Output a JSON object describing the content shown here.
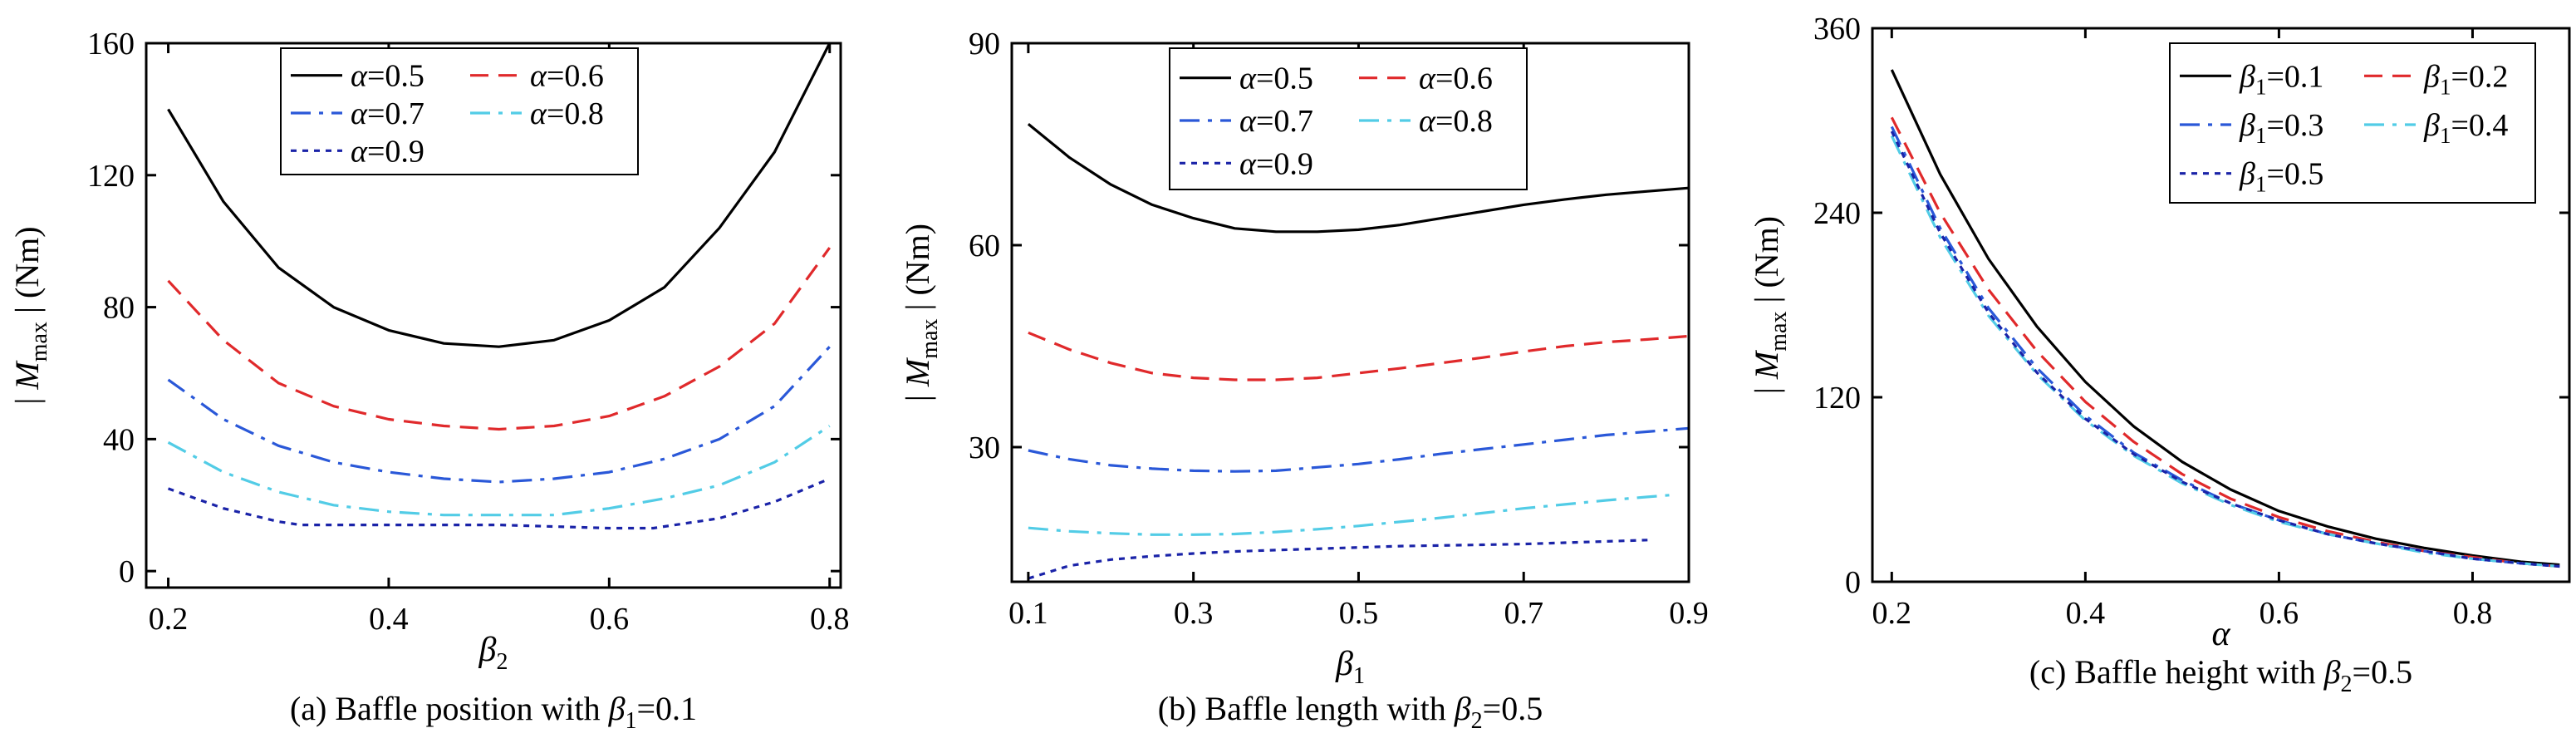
{
  "chart_data": [
    {
      "type": "line",
      "caption": "(a) Baffle position with β1=0.1",
      "caption_parts": {
        "pre": "(a) Baffle position with ",
        "sym": "β",
        "sub": "1",
        "post": "=0.1"
      },
      "xlabel": {
        "sym": "β",
        "sub": "2"
      },
      "ylabel": {
        "pre": "| ",
        "sym": "M",
        "sub": "max",
        "post": " | (Nm)"
      },
      "xlim": [
        0.18,
        0.81
      ],
      "ylim": [
        -5,
        160
      ],
      "xticks": [
        "0.2",
        "0.4",
        "0.6",
        "0.8"
      ],
      "yticks": [
        "0",
        "40",
        "80",
        "120",
        "160"
      ],
      "legend_columns": 2,
      "series": [
        {
          "name": "α=0.5",
          "color": "#000000",
          "dash": "solid",
          "x": [
            0.2,
            0.25,
            0.3,
            0.35,
            0.4,
            0.45,
            0.5,
            0.55,
            0.6,
            0.65,
            0.7,
            0.75,
            0.8
          ],
          "y": [
            140,
            112,
            92,
            80,
            73,
            69,
            68,
            70,
            76,
            86,
            104,
            127,
            160
          ]
        },
        {
          "name": "α=0.6",
          "color": "#e0292b",
          "dash": "dash",
          "x": [
            0.2,
            0.25,
            0.3,
            0.35,
            0.4,
            0.45,
            0.5,
            0.55,
            0.6,
            0.65,
            0.7,
            0.75,
            0.8
          ],
          "y": [
            88,
            70,
            57,
            50,
            46,
            44,
            43,
            44,
            47,
            53,
            62,
            75,
            98
          ]
        },
        {
          "name": "α=0.7",
          "color": "#2a58d8",
          "dash": "dashdot",
          "x": [
            0.2,
            0.25,
            0.3,
            0.35,
            0.4,
            0.45,
            0.5,
            0.55,
            0.6,
            0.65,
            0.7,
            0.75,
            0.8
          ],
          "y": [
            58,
            46,
            38,
            33,
            30,
            28,
            27,
            28,
            30,
            34,
            40,
            50,
            68
          ]
        },
        {
          "name": "α=0.8",
          "color": "#52cce6",
          "dash": "dashdot",
          "x": [
            0.2,
            0.25,
            0.3,
            0.35,
            0.4,
            0.45,
            0.5,
            0.55,
            0.6,
            0.65,
            0.7,
            0.75,
            0.8
          ],
          "y": [
            39,
            30,
            24,
            20,
            18,
            17,
            17,
            17,
            19,
            22,
            26,
            33,
            44
          ]
        },
        {
          "name": "α=0.9",
          "color": "#1a23a8",
          "dash": "dot",
          "x": [
            0.2,
            0.25,
            0.3,
            0.32,
            0.4,
            0.5,
            0.6,
            0.64,
            0.7,
            0.75,
            0.8
          ],
          "y": [
            25,
            19,
            15,
            14,
            14,
            14,
            13,
            13,
            16,
            21,
            28
          ]
        }
      ]
    },
    {
      "type": "line",
      "caption": "(b) Baffle length with β2=0.5",
      "caption_parts": {
        "pre": "(b) Baffle length with ",
        "sym": "β",
        "sub": "2",
        "post": "=0.5"
      },
      "xlabel": {
        "sym": "β",
        "sub": "1"
      },
      "ylabel": {
        "pre": "| ",
        "sym": "M",
        "sub": "max",
        "post": " | (Nm)"
      },
      "xlim": [
        0.08,
        0.9
      ],
      "ylim": [
        10,
        90
      ],
      "xticks": [
        "0.1",
        "0.3",
        "0.5",
        "0.7",
        "0.9"
      ],
      "yticks": [
        "30",
        "60",
        "90"
      ],
      "legend_columns": 2,
      "series": [
        {
          "name": "α=0.5",
          "color": "#000000",
          "dash": "solid",
          "x": [
            0.1,
            0.15,
            0.2,
            0.25,
            0.3,
            0.35,
            0.4,
            0.45,
            0.5,
            0.55,
            0.6,
            0.65,
            0.7,
            0.75,
            0.8,
            0.85,
            0.9
          ],
          "y": [
            78,
            73,
            69,
            66,
            64,
            62.5,
            62,
            62,
            62.3,
            63,
            64,
            65,
            66,
            66.8,
            67.5,
            68,
            68.5
          ]
        },
        {
          "name": "α=0.6",
          "color": "#e0292b",
          "dash": "dash",
          "x": [
            0.1,
            0.15,
            0.2,
            0.25,
            0.3,
            0.35,
            0.4,
            0.45,
            0.5,
            0.55,
            0.6,
            0.65,
            0.7,
            0.75,
            0.8,
            0.85,
            0.9
          ],
          "y": [
            47,
            44.5,
            42.5,
            41,
            40.3,
            40,
            40,
            40.3,
            41,
            41.7,
            42.5,
            43.3,
            44.2,
            45,
            45.6,
            46,
            46.5
          ]
        },
        {
          "name": "α=0.7",
          "color": "#2a58d8",
          "dash": "dashdot",
          "x": [
            0.1,
            0.15,
            0.2,
            0.25,
            0.3,
            0.35,
            0.4,
            0.45,
            0.5,
            0.55,
            0.6,
            0.65,
            0.7,
            0.75,
            0.8,
            0.85,
            0.9
          ],
          "y": [
            29.5,
            28.2,
            27.3,
            26.8,
            26.5,
            26.4,
            26.5,
            27,
            27.5,
            28.2,
            29,
            29.7,
            30.4,
            31.1,
            31.8,
            32.3,
            32.8
          ]
        },
        {
          "name": "α=0.8",
          "color": "#52cce6",
          "dash": "dashdot",
          "x": [
            0.1,
            0.15,
            0.2,
            0.25,
            0.3,
            0.35,
            0.4,
            0.45,
            0.5,
            0.55,
            0.6,
            0.65,
            0.7,
            0.75,
            0.8,
            0.85,
            0.88
          ],
          "y": [
            18,
            17.5,
            17.2,
            17,
            17,
            17.1,
            17.4,
            17.8,
            18.3,
            18.9,
            19.5,
            20.2,
            20.9,
            21.5,
            22.1,
            22.6,
            22.9
          ]
        },
        {
          "name": "α=0.9",
          "color": "#1a23a8",
          "dash": "dot",
          "x": [
            0.1,
            0.15,
            0.2,
            0.25,
            0.3,
            0.35,
            0.4,
            0.45,
            0.5,
            0.55,
            0.6,
            0.65,
            0.7,
            0.75,
            0.8,
            0.85
          ],
          "y": [
            10.5,
            12.4,
            13.3,
            13.8,
            14.2,
            14.5,
            14.7,
            14.9,
            15.1,
            15.3,
            15.4,
            15.5,
            15.6,
            15.8,
            16,
            16.2
          ]
        }
      ]
    },
    {
      "type": "line",
      "caption": "(c) Baffle height with β2=0.5",
      "caption_parts": {
        "pre": "(c) Baffle height with ",
        "sym": "β",
        "sub": "2",
        "post": "=0.5"
      },
      "xlabel": {
        "sym": "α",
        "sub": ""
      },
      "ylabel": {
        "pre": "| ",
        "sym": "M",
        "sub": "max",
        "post": " | (Nm)"
      },
      "xlim": [
        0.18,
        0.9
      ],
      "ylim": [
        0,
        360
      ],
      "xticks": [
        "0.2",
        "0.4",
        "0.6",
        "0.8"
      ],
      "yticks": [
        "0",
        "120",
        "240",
        "360"
      ],
      "legend_columns": 2,
      "series": [
        {
          "name": "β1=0.1",
          "label_sym": "β",
          "label_sub": "1",
          "label_post": "=0.1",
          "color": "#000000",
          "dash": "solid",
          "x": [
            0.2,
            0.25,
            0.3,
            0.35,
            0.4,
            0.45,
            0.5,
            0.55,
            0.6,
            0.65,
            0.7,
            0.75,
            0.8,
            0.85,
            0.89
          ],
          "y": [
            333,
            265,
            210,
            166,
            130,
            101,
            78,
            60,
            46,
            36,
            28,
            22,
            17,
            13,
            11
          ]
        },
        {
          "name": "β1=0.2",
          "label_sym": "β",
          "label_sub": "1",
          "label_post": "=0.2",
          "color": "#e0292b",
          "dash": "dash",
          "x": [
            0.2,
            0.25,
            0.3,
            0.35,
            0.4,
            0.45,
            0.5,
            0.55,
            0.6,
            0.65,
            0.7,
            0.75,
            0.8,
            0.85,
            0.89
          ],
          "y": [
            302,
            240,
            190,
            150,
            117,
            91,
            70,
            54,
            42,
            33,
            26,
            20,
            16,
            12,
            10
          ]
        },
        {
          "name": "β1=0.3",
          "label_sym": "β",
          "label_sub": "1",
          "label_post": "=0.3",
          "color": "#2a58d8",
          "dash": "dashdot",
          "x": [
            0.2,
            0.25,
            0.3,
            0.35,
            0.4,
            0.45,
            0.5,
            0.55,
            0.6,
            0.65,
            0.7,
            0.75,
            0.8,
            0.85,
            0.89
          ],
          "y": [
            296,
            230,
            178,
            139,
            108,
            84,
            66,
            51,
            40,
            31,
            25,
            20,
            15,
            12,
            10
          ]
        },
        {
          "name": "β1=0.4",
          "label_sym": "β",
          "label_sub": "1",
          "label_post": "=0.4",
          "color": "#52cce6",
          "dash": "dashdot",
          "x": [
            0.2,
            0.25,
            0.3,
            0.35,
            0.4,
            0.45,
            0.5,
            0.55,
            0.6,
            0.65,
            0.7,
            0.75,
            0.8,
            0.85,
            0.89
          ],
          "y": [
            290,
            224,
            173,
            135,
            105,
            82,
            64,
            50,
            39,
            31,
            25,
            19,
            15,
            12,
            10
          ]
        },
        {
          "name": "β1=0.5",
          "label_sym": "β",
          "label_sub": "1",
          "label_post": "=0.5",
          "color": "#1a23a8",
          "dash": "dot",
          "x": [
            0.2,
            0.25,
            0.3,
            0.35,
            0.4,
            0.45,
            0.5,
            0.55,
            0.6,
            0.65,
            0.7,
            0.75,
            0.8,
            0.85,
            0.89
          ],
          "y": [
            293,
            227,
            175,
            136,
            106,
            83,
            65,
            51,
            40,
            31,
            25,
            20,
            15,
            12,
            10
          ]
        }
      ]
    }
  ]
}
